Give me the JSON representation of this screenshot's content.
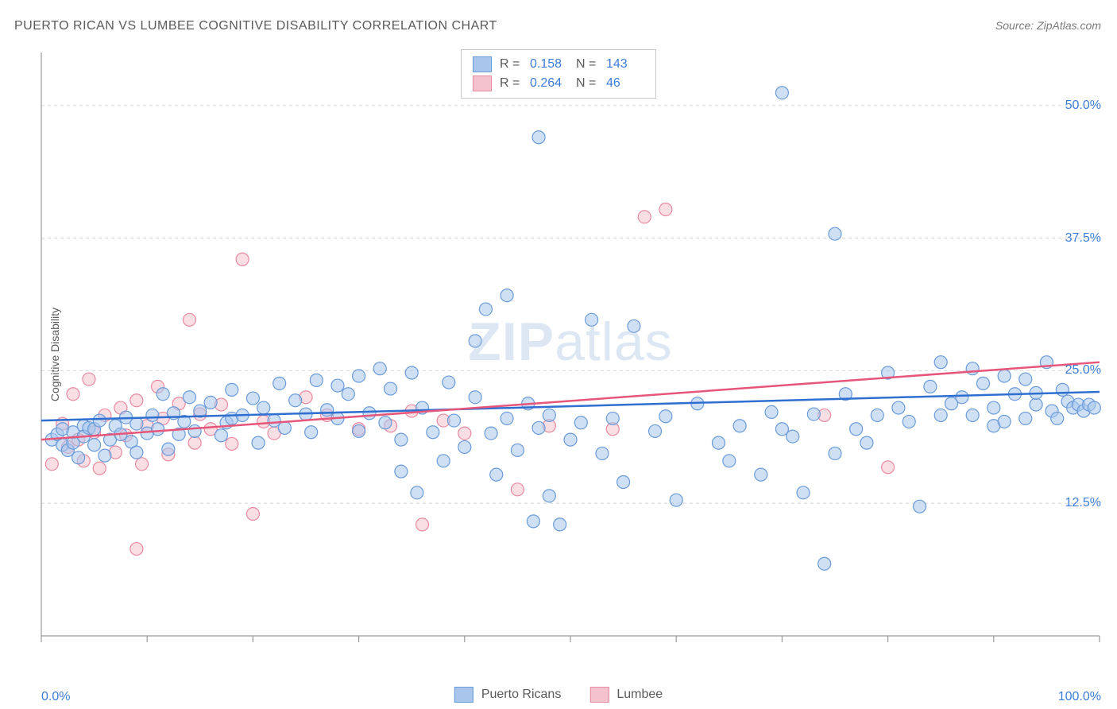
{
  "title": "PUERTO RICAN VS LUMBEE COGNITIVE DISABILITY CORRELATION CHART",
  "source": "Source: ZipAtlas.com",
  "ylabel": "Cognitive Disability",
  "watermark_a": "ZIP",
  "watermark_b": "atlas",
  "chart": {
    "type": "scatter",
    "xlim": [
      0,
      100
    ],
    "ylim": [
      0,
      55
    ],
    "y_ticks": [
      12.5,
      25.0,
      37.5,
      50.0
    ],
    "y_tick_labels": [
      "12.5%",
      "25.0%",
      "37.5%",
      "50.0%"
    ],
    "x_lim_labels": [
      "0.0%",
      "100.0%"
    ],
    "x_minor_ticks_count": 10,
    "background_color": "#ffffff",
    "axis_color": "#9a9a9a",
    "grid_color": "#d8d8d8",
    "grid_dash": "4,4",
    "marker_radius": 8,
    "marker_opacity": 0.55,
    "line_width": 2.5,
    "series": [
      {
        "name": "Puerto Ricans",
        "fill": "#a8c6ec",
        "stroke": "#6a9bd8",
        "line_color": "#2f6fd0",
        "R": "0.158",
        "N": "143",
        "trend": {
          "x1": 0,
          "y1": 20.3,
          "x2": 100,
          "y2": 23.0
        },
        "points": [
          [
            1,
            18.5
          ],
          [
            1.5,
            19
          ],
          [
            2,
            18
          ],
          [
            2,
            19.5
          ],
          [
            2.5,
            17.5
          ],
          [
            3,
            19.2
          ],
          [
            3,
            18.2
          ],
          [
            3.5,
            16.8
          ],
          [
            4,
            19.8
          ],
          [
            4,
            18.8
          ],
          [
            4.5,
            19.6
          ],
          [
            5,
            18
          ],
          [
            5,
            19.5
          ],
          [
            5.5,
            20.3
          ],
          [
            6,
            17
          ],
          [
            6.5,
            18.5
          ],
          [
            7,
            19.8
          ],
          [
            7.5,
            19
          ],
          [
            8,
            20.6
          ],
          [
            8.5,
            18.3
          ],
          [
            9,
            17.3
          ],
          [
            9,
            20
          ],
          [
            10,
            19.1
          ],
          [
            10.5,
            20.8
          ],
          [
            11,
            19.5
          ],
          [
            11.5,
            22.8
          ],
          [
            12,
            17.6
          ],
          [
            12.5,
            21
          ],
          [
            13,
            19
          ],
          [
            13.5,
            20.2
          ],
          [
            14,
            22.5
          ],
          [
            14.5,
            19.3
          ],
          [
            15,
            21.2
          ],
          [
            16,
            22
          ],
          [
            17,
            18.9
          ],
          [
            17.5,
            20.1
          ],
          [
            18,
            23.2
          ],
          [
            18,
            20.5
          ],
          [
            19,
            20.8
          ],
          [
            20,
            22.4
          ],
          [
            20.5,
            18.2
          ],
          [
            21,
            21.5
          ],
          [
            22,
            20.3
          ],
          [
            22.5,
            23.8
          ],
          [
            23,
            19.6
          ],
          [
            24,
            22.2
          ],
          [
            25,
            20.9
          ],
          [
            25.5,
            19.2
          ],
          [
            26,
            24.1
          ],
          [
            27,
            21.3
          ],
          [
            28,
            23.6
          ],
          [
            28,
            20.5
          ],
          [
            29,
            22.8
          ],
          [
            30,
            24.5
          ],
          [
            30,
            19.3
          ],
          [
            31,
            21
          ],
          [
            32,
            25.2
          ],
          [
            32.5,
            20.1
          ],
          [
            33,
            23.3
          ],
          [
            34,
            18.5
          ],
          [
            34,
            15.5
          ],
          [
            35,
            24.8
          ],
          [
            35.5,
            13.5
          ],
          [
            36,
            21.5
          ],
          [
            37,
            19.2
          ],
          [
            38,
            16.5
          ],
          [
            38.5,
            23.9
          ],
          [
            39,
            20.3
          ],
          [
            40,
            17.8
          ],
          [
            41,
            22.5
          ],
          [
            41,
            27.8
          ],
          [
            42,
            30.8
          ],
          [
            42.5,
            19.1
          ],
          [
            43,
            15.2
          ],
          [
            44,
            20.5
          ],
          [
            44,
            32.1
          ],
          [
            45,
            17.5
          ],
          [
            46,
            21.9
          ],
          [
            46.5,
            10.8
          ],
          [
            47,
            19.6
          ],
          [
            47,
            47
          ],
          [
            48,
            13.2
          ],
          [
            48,
            20.8
          ],
          [
            49,
            10.5
          ],
          [
            50,
            18.5
          ],
          [
            51,
            20.1
          ],
          [
            52,
            29.8
          ],
          [
            53,
            17.2
          ],
          [
            54,
            20.5
          ],
          [
            55,
            14.5
          ],
          [
            56,
            29.2
          ],
          [
            58,
            19.3
          ],
          [
            59,
            20.7
          ],
          [
            60,
            12.8
          ],
          [
            62,
            21.9
          ],
          [
            64,
            18.2
          ],
          [
            65,
            16.5
          ],
          [
            66,
            19.8
          ],
          [
            68,
            15.2
          ],
          [
            69,
            21.1
          ],
          [
            70,
            19.5
          ],
          [
            70,
            51.2
          ],
          [
            71,
            18.8
          ],
          [
            72,
            13.5
          ],
          [
            73,
            20.9
          ],
          [
            74,
            6.8
          ],
          [
            75,
            17.2
          ],
          [
            75,
            37.9
          ],
          [
            76,
            22.8
          ],
          [
            77,
            19.5
          ],
          [
            78,
            18.2
          ],
          [
            79,
            20.8
          ],
          [
            80,
            24.8
          ],
          [
            81,
            21.5
          ],
          [
            82,
            20.2
          ],
          [
            83,
            12.2
          ],
          [
            84,
            23.5
          ],
          [
            85,
            20.8
          ],
          [
            85,
            25.8
          ],
          [
            86,
            21.9
          ],
          [
            87,
            22.5
          ],
          [
            88,
            25.2
          ],
          [
            88,
            20.8
          ],
          [
            89,
            23.8
          ],
          [
            90,
            19.8
          ],
          [
            90,
            21.5
          ],
          [
            91,
            24.5
          ],
          [
            91,
            20.2
          ],
          [
            92,
            22.8
          ],
          [
            93,
            20.5
          ],
          [
            93,
            24.2
          ],
          [
            94,
            21.8
          ],
          [
            94,
            22.9
          ],
          [
            95,
            25.8
          ],
          [
            95.5,
            21.2
          ],
          [
            96,
            20.5
          ],
          [
            96.5,
            23.2
          ],
          [
            97,
            22.1
          ],
          [
            97.5,
            21.5
          ],
          [
            98,
            21.8
          ],
          [
            98.5,
            21.2
          ],
          [
            99,
            21.8
          ],
          [
            99.5,
            21.5
          ]
        ]
      },
      {
        "name": "Lumbee",
        "fill": "#f4c2cd",
        "stroke": "#e88aa0",
        "line_color": "#e5567a",
        "R": "0.264",
        "N": "46",
        "trend": {
          "x1": 0,
          "y1": 18.5,
          "x2": 100,
          "y2": 25.8
        },
        "points": [
          [
            1,
            16.2
          ],
          [
            2,
            20
          ],
          [
            2.5,
            17.8
          ],
          [
            3,
            22.8
          ],
          [
            3.5,
            18.5
          ],
          [
            4,
            16.5
          ],
          [
            4.5,
            24.2
          ],
          [
            5,
            19.2
          ],
          [
            5.5,
            15.8
          ],
          [
            6,
            20.8
          ],
          [
            7,
            17.3
          ],
          [
            7.5,
            21.5
          ],
          [
            8,
            18.9
          ],
          [
            9,
            22.2
          ],
          [
            9.5,
            16.2
          ],
          [
            10,
            19.8
          ],
          [
            11,
            23.5
          ],
          [
            11.5,
            20.5
          ],
          [
            12,
            17.1
          ],
          [
            13,
            21.9
          ],
          [
            14,
            29.8
          ],
          [
            14.5,
            18.2
          ],
          [
            15,
            20.9
          ],
          [
            16,
            19.5
          ],
          [
            17,
            21.8
          ],
          [
            18,
            18.1
          ],
          [
            19,
            35.5
          ],
          [
            9,
            8.2
          ],
          [
            20,
            11.5
          ],
          [
            21,
            20.2
          ],
          [
            22,
            19.1
          ],
          [
            25,
            22.5
          ],
          [
            27,
            20.8
          ],
          [
            30,
            19.5
          ],
          [
            33,
            19.8
          ],
          [
            35,
            21.2
          ],
          [
            36,
            10.5
          ],
          [
            38,
            20.3
          ],
          [
            40,
            19.1
          ],
          [
            45,
            13.8
          ],
          [
            48,
            19.8
          ],
          [
            54,
            19.5
          ],
          [
            57,
            39.5
          ],
          [
            59,
            40.2
          ],
          [
            74,
            20.8
          ],
          [
            80,
            15.9
          ]
        ]
      }
    ]
  },
  "legend": {
    "series1_label": "Puerto Ricans",
    "series2_label": "Lumbee"
  }
}
